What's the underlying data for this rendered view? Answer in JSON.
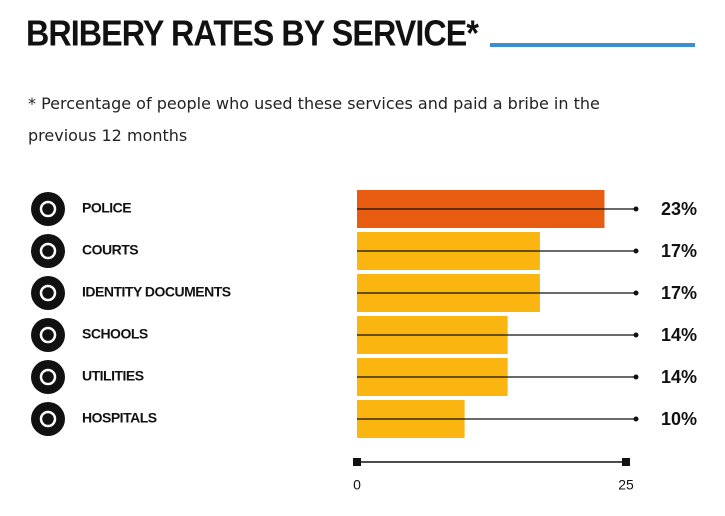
{
  "chart_data": {
    "type": "bar",
    "orientation": "horizontal",
    "title": "BRIBERY RATES BY SERVICE*",
    "note": "* Percentage of people who used these services and paid a bribe in the previous 12 months",
    "categories": [
      "POLICE",
      "COURTS",
      "IDENTITY DOCUMENTS",
      "SCHOOLS",
      "UTILITIES",
      "HOSPITALS"
    ],
    "values": [
      23,
      17,
      17,
      14,
      14,
      10
    ],
    "value_labels": [
      "23%",
      "17%",
      "17%",
      "14%",
      "14%",
      "10%"
    ],
    "colors": [
      "#e85c12",
      "#fbb511",
      "#fbb511",
      "#fbb511",
      "#fbb511",
      "#fbb511"
    ],
    "xlim": [
      0,
      25
    ],
    "xticks": [
      0,
      25
    ]
  }
}
